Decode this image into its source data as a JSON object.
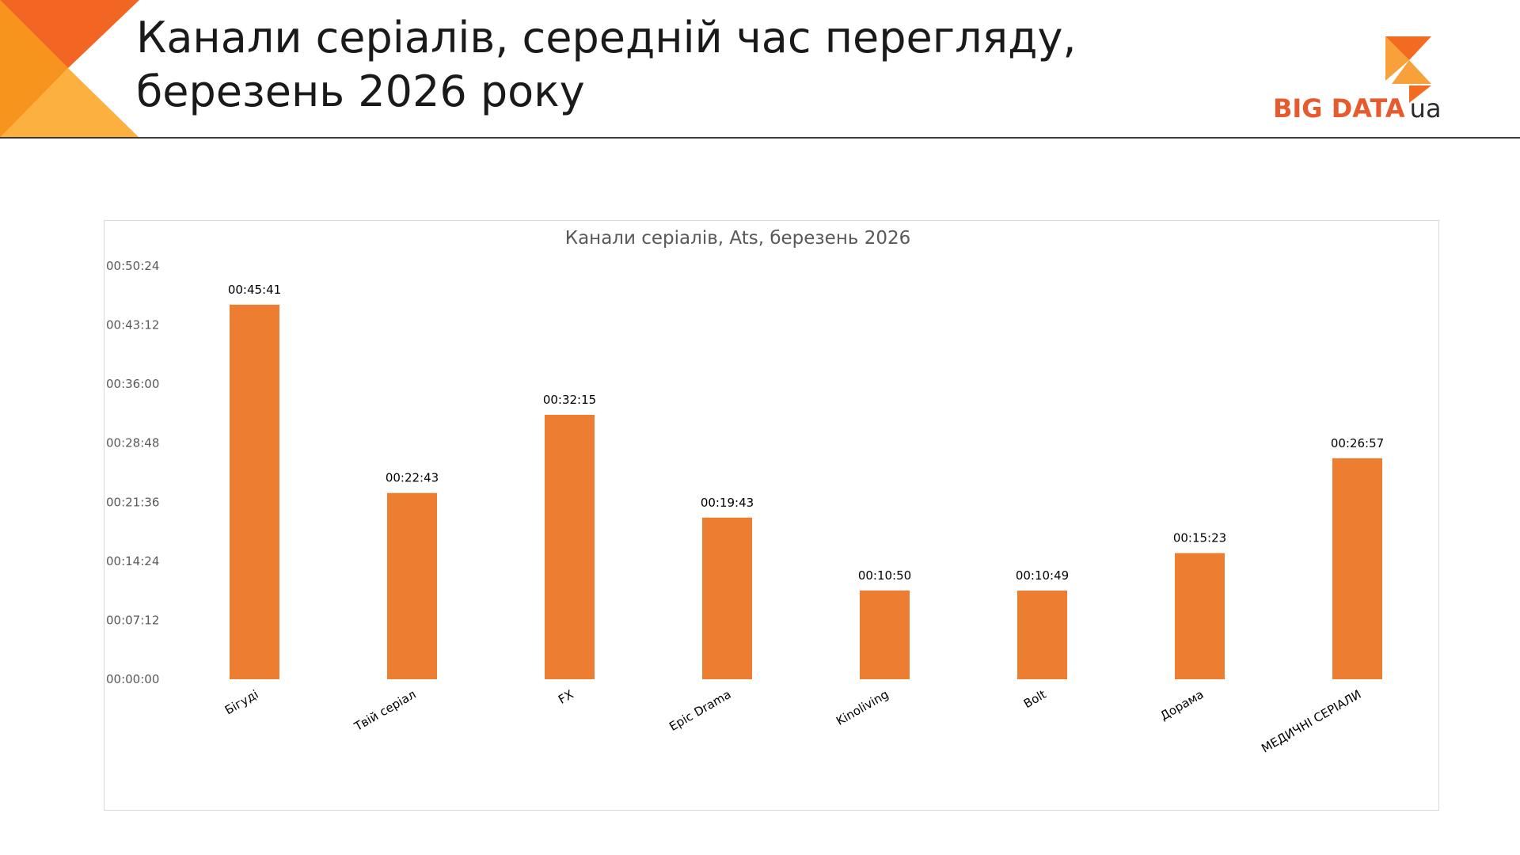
{
  "slide": {
    "title_line1": "Канали серіалів, середній час перегляду,",
    "title_line2": "березень 2026 року"
  },
  "logo": {
    "text_main": "BIG DATA",
    "text_suffix": "ua",
    "colors": {
      "orange": "#f26b21",
      "light_orange": "#f8a13a",
      "red_orange": "#e65a2d"
    }
  },
  "colors": {
    "bar": "#ed7d31",
    "corner_dark": "#f26522",
    "corner_mid": "#f7941d",
    "corner_light": "#fbb040"
  },
  "chart_data": {
    "type": "bar",
    "title": "Канали серіалів, Ats, березень 2026",
    "xlabel": "",
    "ylabel": "",
    "categories": [
      "Бігуді",
      "Твій серіал",
      "FX",
      "Epic Drama",
      "Kinoliving",
      "Bolt",
      "Дорама",
      "МЕДИЧНІ СЕРІАЛИ"
    ],
    "values_seconds": [
      2741,
      1363,
      1935,
      1183,
      650,
      649,
      923,
      1617
    ],
    "value_labels": [
      "00:45:41",
      "00:22:43",
      "00:32:15",
      "00:19:43",
      "00:10:50",
      "00:10:49",
      "00:15:23",
      "00:26:57"
    ],
    "ylim_seconds": [
      0,
      3024
    ],
    "y_ticks_seconds": [
      0,
      432,
      864,
      1296,
      1728,
      2160,
      2592,
      3024
    ],
    "y_tick_labels": [
      "00:00:00",
      "00:07:12",
      "00:14:24",
      "00:21:36",
      "00:28:48",
      "00:36:00",
      "00:43:12",
      "00:50:24"
    ],
    "grid": false,
    "legend": "none"
  }
}
